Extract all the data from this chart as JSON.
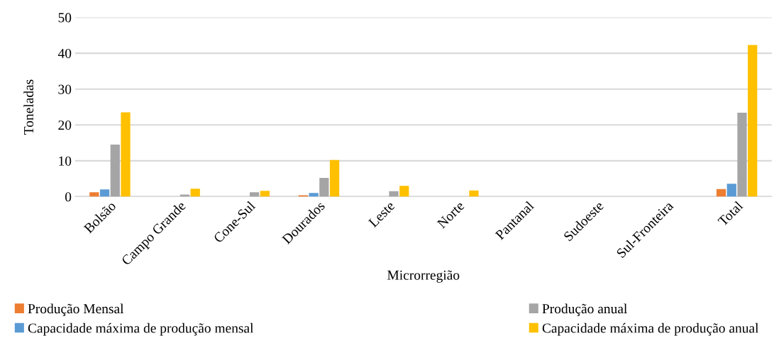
{
  "chart_data": {
    "type": "bar",
    "xlabel": "Microrregião",
    "ylabel": "Toneladas",
    "categories": [
      "Bolsão",
      "Campo Grande",
      "Cone-Sul",
      "Dourados",
      "Leste",
      "Norte",
      "Pantanal",
      "Sudoeste",
      "Sul-Fronteira",
      "Total"
    ],
    "series": [
      {
        "name": "Produção Mensal",
        "color": "#ed7d31",
        "values": [
          1.2,
          0,
          0,
          0.4,
          0,
          0,
          0,
          0,
          0,
          2.1
        ]
      },
      {
        "name": "Capacidade máxima de produção mensal",
        "color": "#5b9bd5",
        "values": [
          2.0,
          0,
          0,
          1.0,
          0,
          0,
          0,
          0,
          0,
          3.6
        ]
      },
      {
        "name": "Produção anual",
        "color": "#a5a5a5",
        "values": [
          14.5,
          0.6,
          1.2,
          5.2,
          1.5,
          0,
          0,
          0,
          0,
          23.4
        ]
      },
      {
        "name": "Capacidade máxima de produção anual",
        "color": "#ffc000",
        "values": [
          23.5,
          2.2,
          1.6,
          10.2,
          3.0,
          1.7,
          0,
          0,
          0,
          42.3
        ]
      }
    ],
    "ylim": [
      0,
      50
    ],
    "yticks": [
      0,
      10,
      20,
      30,
      40,
      50
    ],
    "grid": "y",
    "legend": "bottom"
  }
}
